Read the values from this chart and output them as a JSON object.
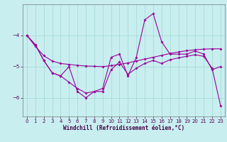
{
  "xlabel": "Windchill (Refroidissement éolien,°C)",
  "bg_color": "#c8eef0",
  "grid_color": "#a0d8d0",
  "line_color": "#990099",
  "x": [
    0,
    1,
    2,
    3,
    4,
    5,
    6,
    7,
    8,
    9,
    10,
    11,
    12,
    13,
    14,
    15,
    16,
    17,
    18,
    19,
    20,
    21,
    22,
    23
  ],
  "line1_y": [
    -4.0,
    -4.3,
    -4.8,
    -5.2,
    -5.3,
    -5.0,
    -5.8,
    -6.0,
    -5.8,
    -5.7,
    -4.7,
    -4.6,
    -5.3,
    -4.7,
    -3.5,
    -3.3,
    -4.2,
    -4.6,
    -4.6,
    -4.6,
    -4.5,
    -4.6,
    -5.1,
    -5.0
  ],
  "line2_y": [
    -4.0,
    -4.35,
    -4.65,
    -4.82,
    -4.9,
    -4.93,
    -4.96,
    -4.98,
    -4.99,
    -5.0,
    -4.97,
    -4.93,
    -4.88,
    -4.82,
    -4.76,
    -4.7,
    -4.64,
    -4.58,
    -4.53,
    -4.49,
    -4.46,
    -4.44,
    -4.43,
    -4.43
  ],
  "line3_y": [
    -4.0,
    -4.3,
    -4.8,
    -5.2,
    -5.3,
    -5.5,
    -5.7,
    -5.85,
    -5.8,
    -5.8,
    -5.1,
    -4.85,
    -5.25,
    -5.05,
    -4.9,
    -4.8,
    -4.9,
    -4.78,
    -4.72,
    -4.67,
    -4.62,
    -4.67,
    -5.05,
    -6.25
  ],
  "ylim": [
    -6.6,
    -3.0
  ],
  "xlim": [
    -0.5,
    23.5
  ],
  "yticks": [
    -6,
    -5,
    -4
  ],
  "xticks": [
    0,
    1,
    2,
    3,
    4,
    5,
    6,
    7,
    8,
    9,
    10,
    11,
    12,
    13,
    14,
    15,
    16,
    17,
    18,
    19,
    20,
    21,
    22,
    23
  ],
  "xlabel_fontsize": 5.5,
  "tick_fontsize": 5,
  "linewidth": 0.8,
  "markersize": 2
}
